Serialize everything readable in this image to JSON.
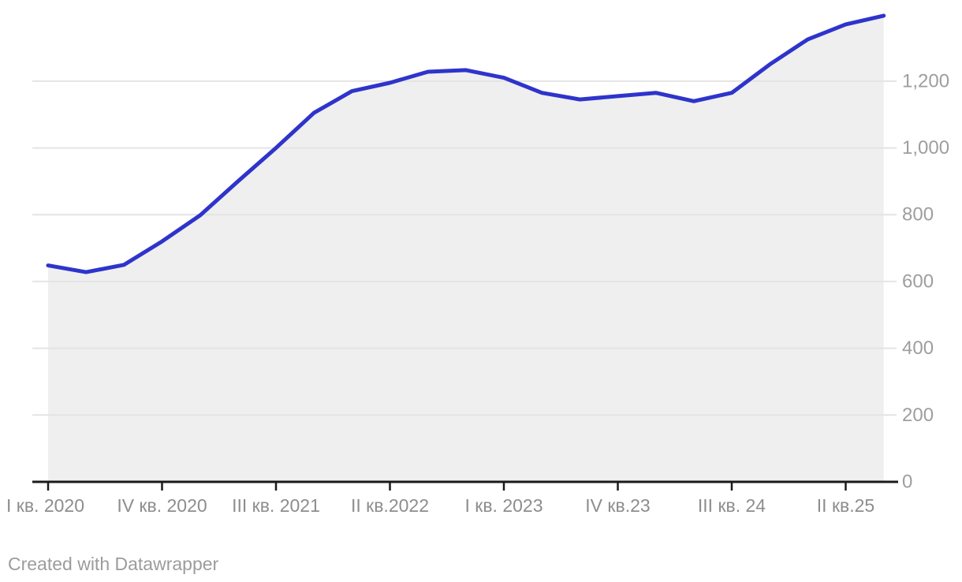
{
  "chart": {
    "footer_text": "Created with Datawrapper"
  },
  "chart_data": {
    "type": "area",
    "title": "",
    "xlabel": "",
    "ylabel": "",
    "x_unit": "quarter",
    "n_points": 23,
    "values": [
      648,
      628,
      650,
      720,
      798,
      900,
      1000,
      1105,
      1170,
      1195,
      1228,
      1233,
      1210,
      1165,
      1145,
      1155,
      1165,
      1140,
      1165,
      1250,
      1325,
      1370,
      1396
    ],
    "x_ticks": [
      {
        "index": 0,
        "label": "I кв. 2020"
      },
      {
        "index": 3,
        "label": "IV кв. 2020"
      },
      {
        "index": 6,
        "label": "III кв. 2021"
      },
      {
        "index": 9,
        "label": "II кв.2022"
      },
      {
        "index": 12,
        "label": "I кв. 2023"
      },
      {
        "index": 15,
        "label": "IV кв.23"
      },
      {
        "index": 18,
        "label": "III кв. 24"
      },
      {
        "index": 21,
        "label": "II кв.25"
      }
    ],
    "y_ticks": [
      {
        "value": 0,
        "label": "0"
      },
      {
        "value": 200,
        "label": "200"
      },
      {
        "value": 400,
        "label": "400"
      },
      {
        "value": 600,
        "label": "600"
      },
      {
        "value": 800,
        "label": "800"
      },
      {
        "value": 1000,
        "label": "1,000"
      },
      {
        "value": 1200,
        "label": "1,200"
      }
    ],
    "ylim": [
      0,
      1404
    ],
    "grid": "horizontal",
    "legend": "none",
    "colors": {
      "line": "#2e34cb",
      "area_fill": "#efefef",
      "gridline": "#e4e4e4",
      "baseline": "#1a1a1a",
      "y_tick_label": "#9e9e9e",
      "x_tick_label": "#8d8d8d",
      "footer": "#9c9c9c",
      "background": "#ffffff"
    }
  }
}
